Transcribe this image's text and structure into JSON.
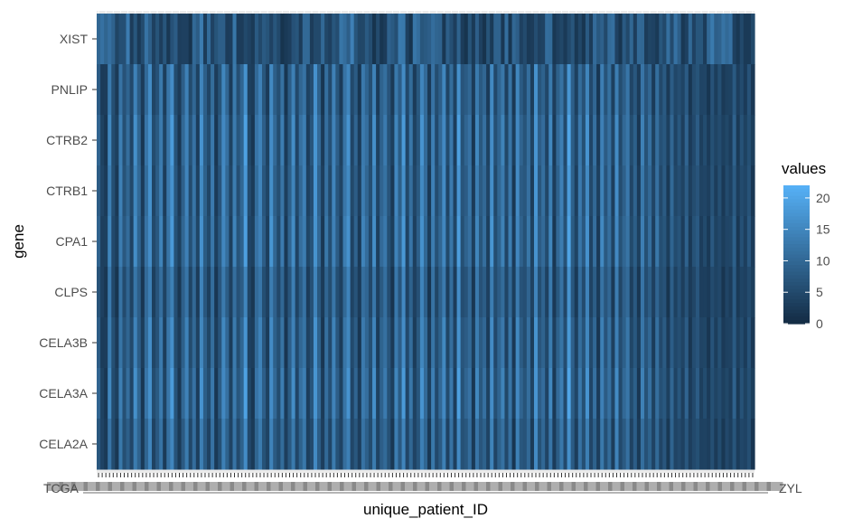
{
  "chart_data": {
    "type": "heatmap",
    "xlabel": "unique_patient_ID",
    "ylabel": "gene",
    "genes_top_to_bottom": [
      "XIST",
      "PNLIP",
      "CTRB2",
      "CTRB1",
      "CPA1",
      "CLPS",
      "CELA3B",
      "CELA3A",
      "CELA2A"
    ],
    "x_tick_labels_visible": [
      "TCGA",
      "ZYL"
    ],
    "x_tick_count": 179,
    "legend": {
      "title": "values",
      "ticks": [
        0,
        5,
        10,
        15,
        20
      ],
      "range": [
        0,
        22
      ],
      "placement": "right"
    },
    "colors": {
      "low": "#132B43",
      "high": "#56B1F7",
      "panel": "#ebebeb",
      "grid": "#ffffff"
    },
    "values_note": "per-patient expression strip pattern; values 0-22",
    "patient_intensity": [
      8,
      3,
      2,
      14,
      5,
      2,
      13,
      6,
      10,
      4,
      15,
      9,
      2,
      11,
      16,
      4,
      7,
      13,
      3,
      12,
      17,
      6,
      2,
      9,
      14,
      5,
      11,
      3,
      16,
      8,
      4,
      12,
      2,
      7,
      15,
      10,
      3,
      13,
      6,
      9,
      18,
      4,
      2,
      11,
      14,
      7,
      3,
      16,
      9,
      5,
      12,
      2,
      8,
      15,
      4,
      10,
      13,
      3,
      6,
      17,
      9,
      2,
      11,
      5,
      14,
      7,
      3,
      12,
      16,
      4,
      8,
      2,
      13,
      10,
      5,
      15,
      3,
      9,
      12,
      6,
      2,
      14,
      8,
      17,
      4,
      11,
      3,
      7,
      16,
      10,
      2,
      13,
      5,
      9,
      15,
      4,
      12,
      3,
      18,
      6,
      8,
      11,
      2,
      14,
      7,
      10,
      3,
      16,
      5,
      9,
      13,
      4,
      12,
      2,
      15,
      8,
      6,
      11,
      3,
      17,
      7,
      10,
      4,
      14,
      2,
      9,
      13,
      5,
      19,
      8,
      3,
      12,
      6,
      16,
      4,
      10,
      2,
      14,
      7,
      11,
      3,
      15,
      5,
      9,
      12,
      4,
      8,
      2,
      13,
      6,
      10,
      3,
      11,
      5,
      7,
      2,
      9,
      4,
      6,
      3,
      8,
      2,
      5,
      7,
      3,
      4,
      2,
      6,
      3,
      5,
      2,
      4,
      3,
      8,
      2,
      5,
      3,
      6,
      2
    ]
  }
}
